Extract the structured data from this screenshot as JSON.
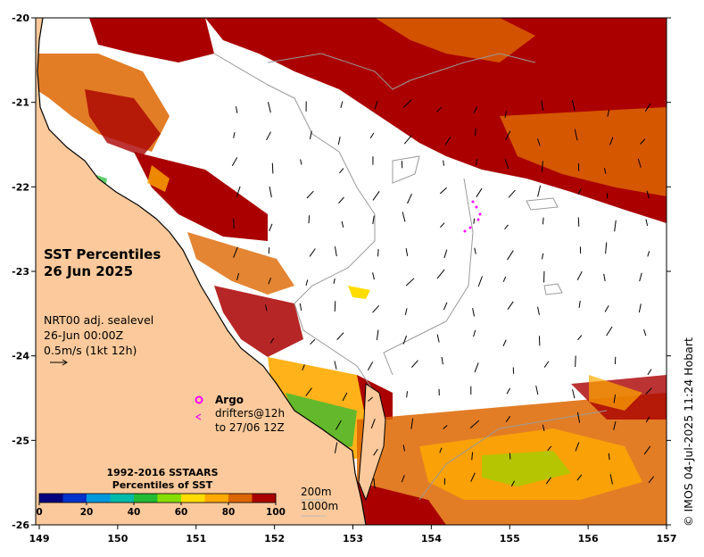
{
  "title": {
    "line1": "SST Percentiles",
    "line2": "26 Jun 2025"
  },
  "info": {
    "line1": "NRT00 adj. sealevel",
    "line2": "26-Jun 00:00Z",
    "line3": "0.5m/s (1kt 12h)"
  },
  "legend": {
    "title1": "1992-2016 SSTAARS",
    "title2": "Percentiles of SST",
    "ticks": [
      "0",
      "20",
      "40",
      "60",
      "80",
      "100"
    ],
    "colors": [
      "#00007f",
      "#0033cc",
      "#0099dd",
      "#00bbaa",
      "#22bb33",
      "#88dd00",
      "#ffdd00",
      "#ffaa00",
      "#dd6600",
      "#aa0000"
    ]
  },
  "markers": {
    "argo": "Argo",
    "drifters_line1": "drifters@12h",
    "drifters_line2": "to 27/06 12Z"
  },
  "contours": {
    "shallow": "200m",
    "deep": "1000m"
  },
  "axes": {
    "lon_ticks": [
      "149",
      "150",
      "151",
      "152",
      "153",
      "154",
      "155",
      "156",
      "157"
    ],
    "lat_ticks": [
      "-20",
      "-21",
      "-22",
      "-23",
      "-24",
      "-25",
      "-26"
    ],
    "lon_range": [
      149,
      157
    ],
    "lat_range": [
      -26,
      -20
    ]
  },
  "copyright": "© IMOS 04-Jul-2025 11:24 Hobart",
  "colors": {
    "land": "#fbc99b",
    "ocean": "#ffffff",
    "hot": "#aa0000",
    "argo": "#ff00ff"
  }
}
